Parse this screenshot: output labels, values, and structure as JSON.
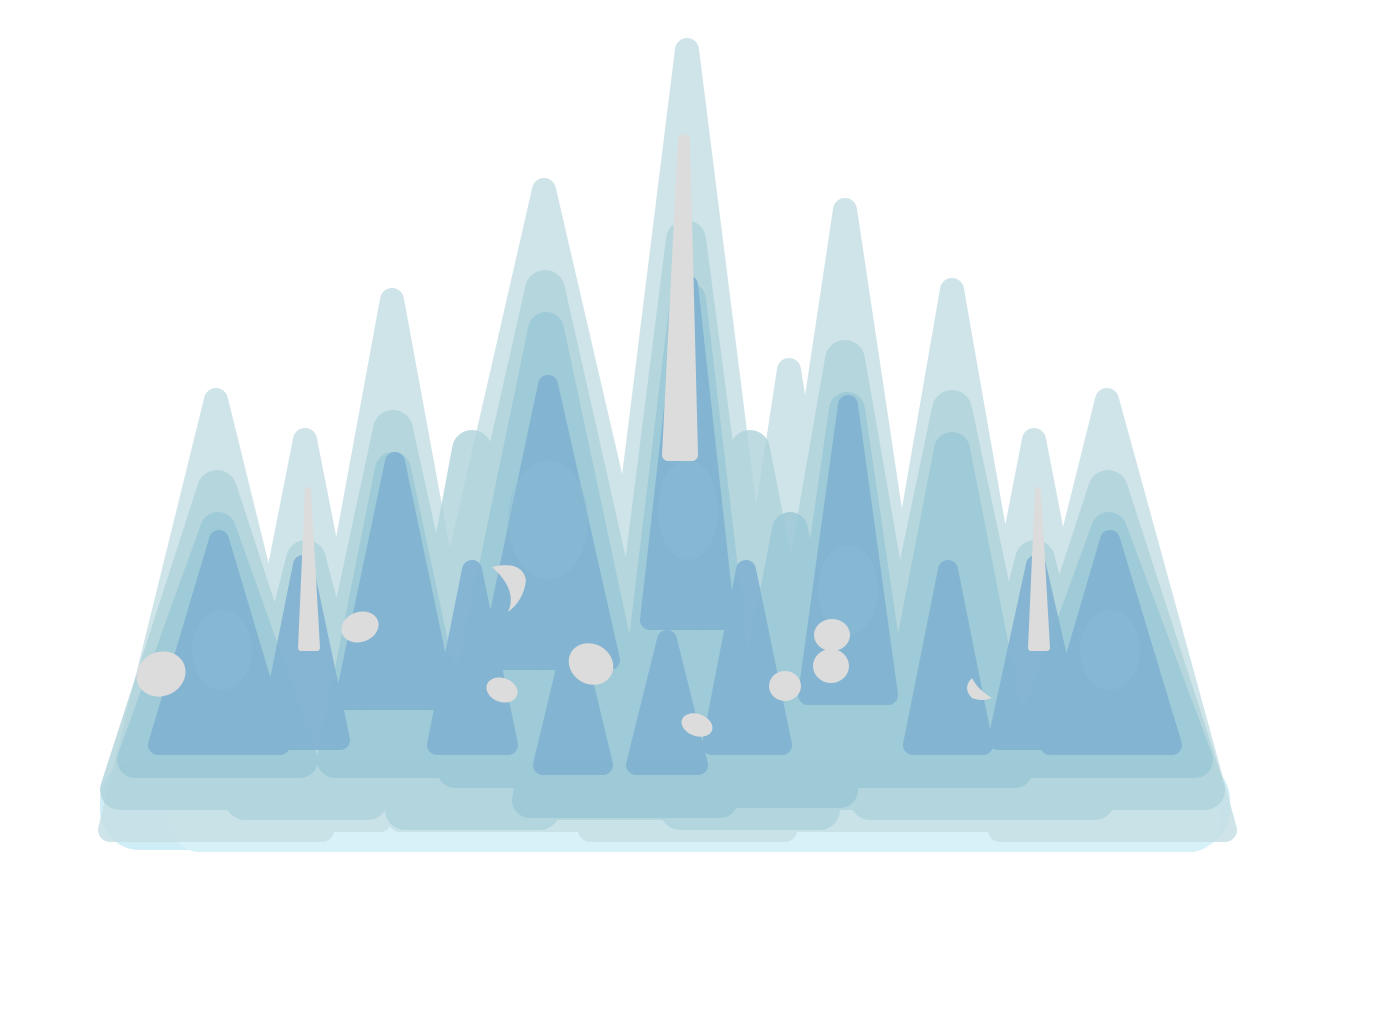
{
  "illustration": {
    "subject": "ice-crystal-cluster",
    "colors": {
      "background": "#ffffff",
      "outer_layer": "#c2dde4",
      "mid_layer": "#a7cfd8",
      "inner_layer": "#93c1d3",
      "core_layer": "#7fb0d2",
      "base_glow": "#a8dff0",
      "highlight": "#dcdcdc"
    }
  }
}
